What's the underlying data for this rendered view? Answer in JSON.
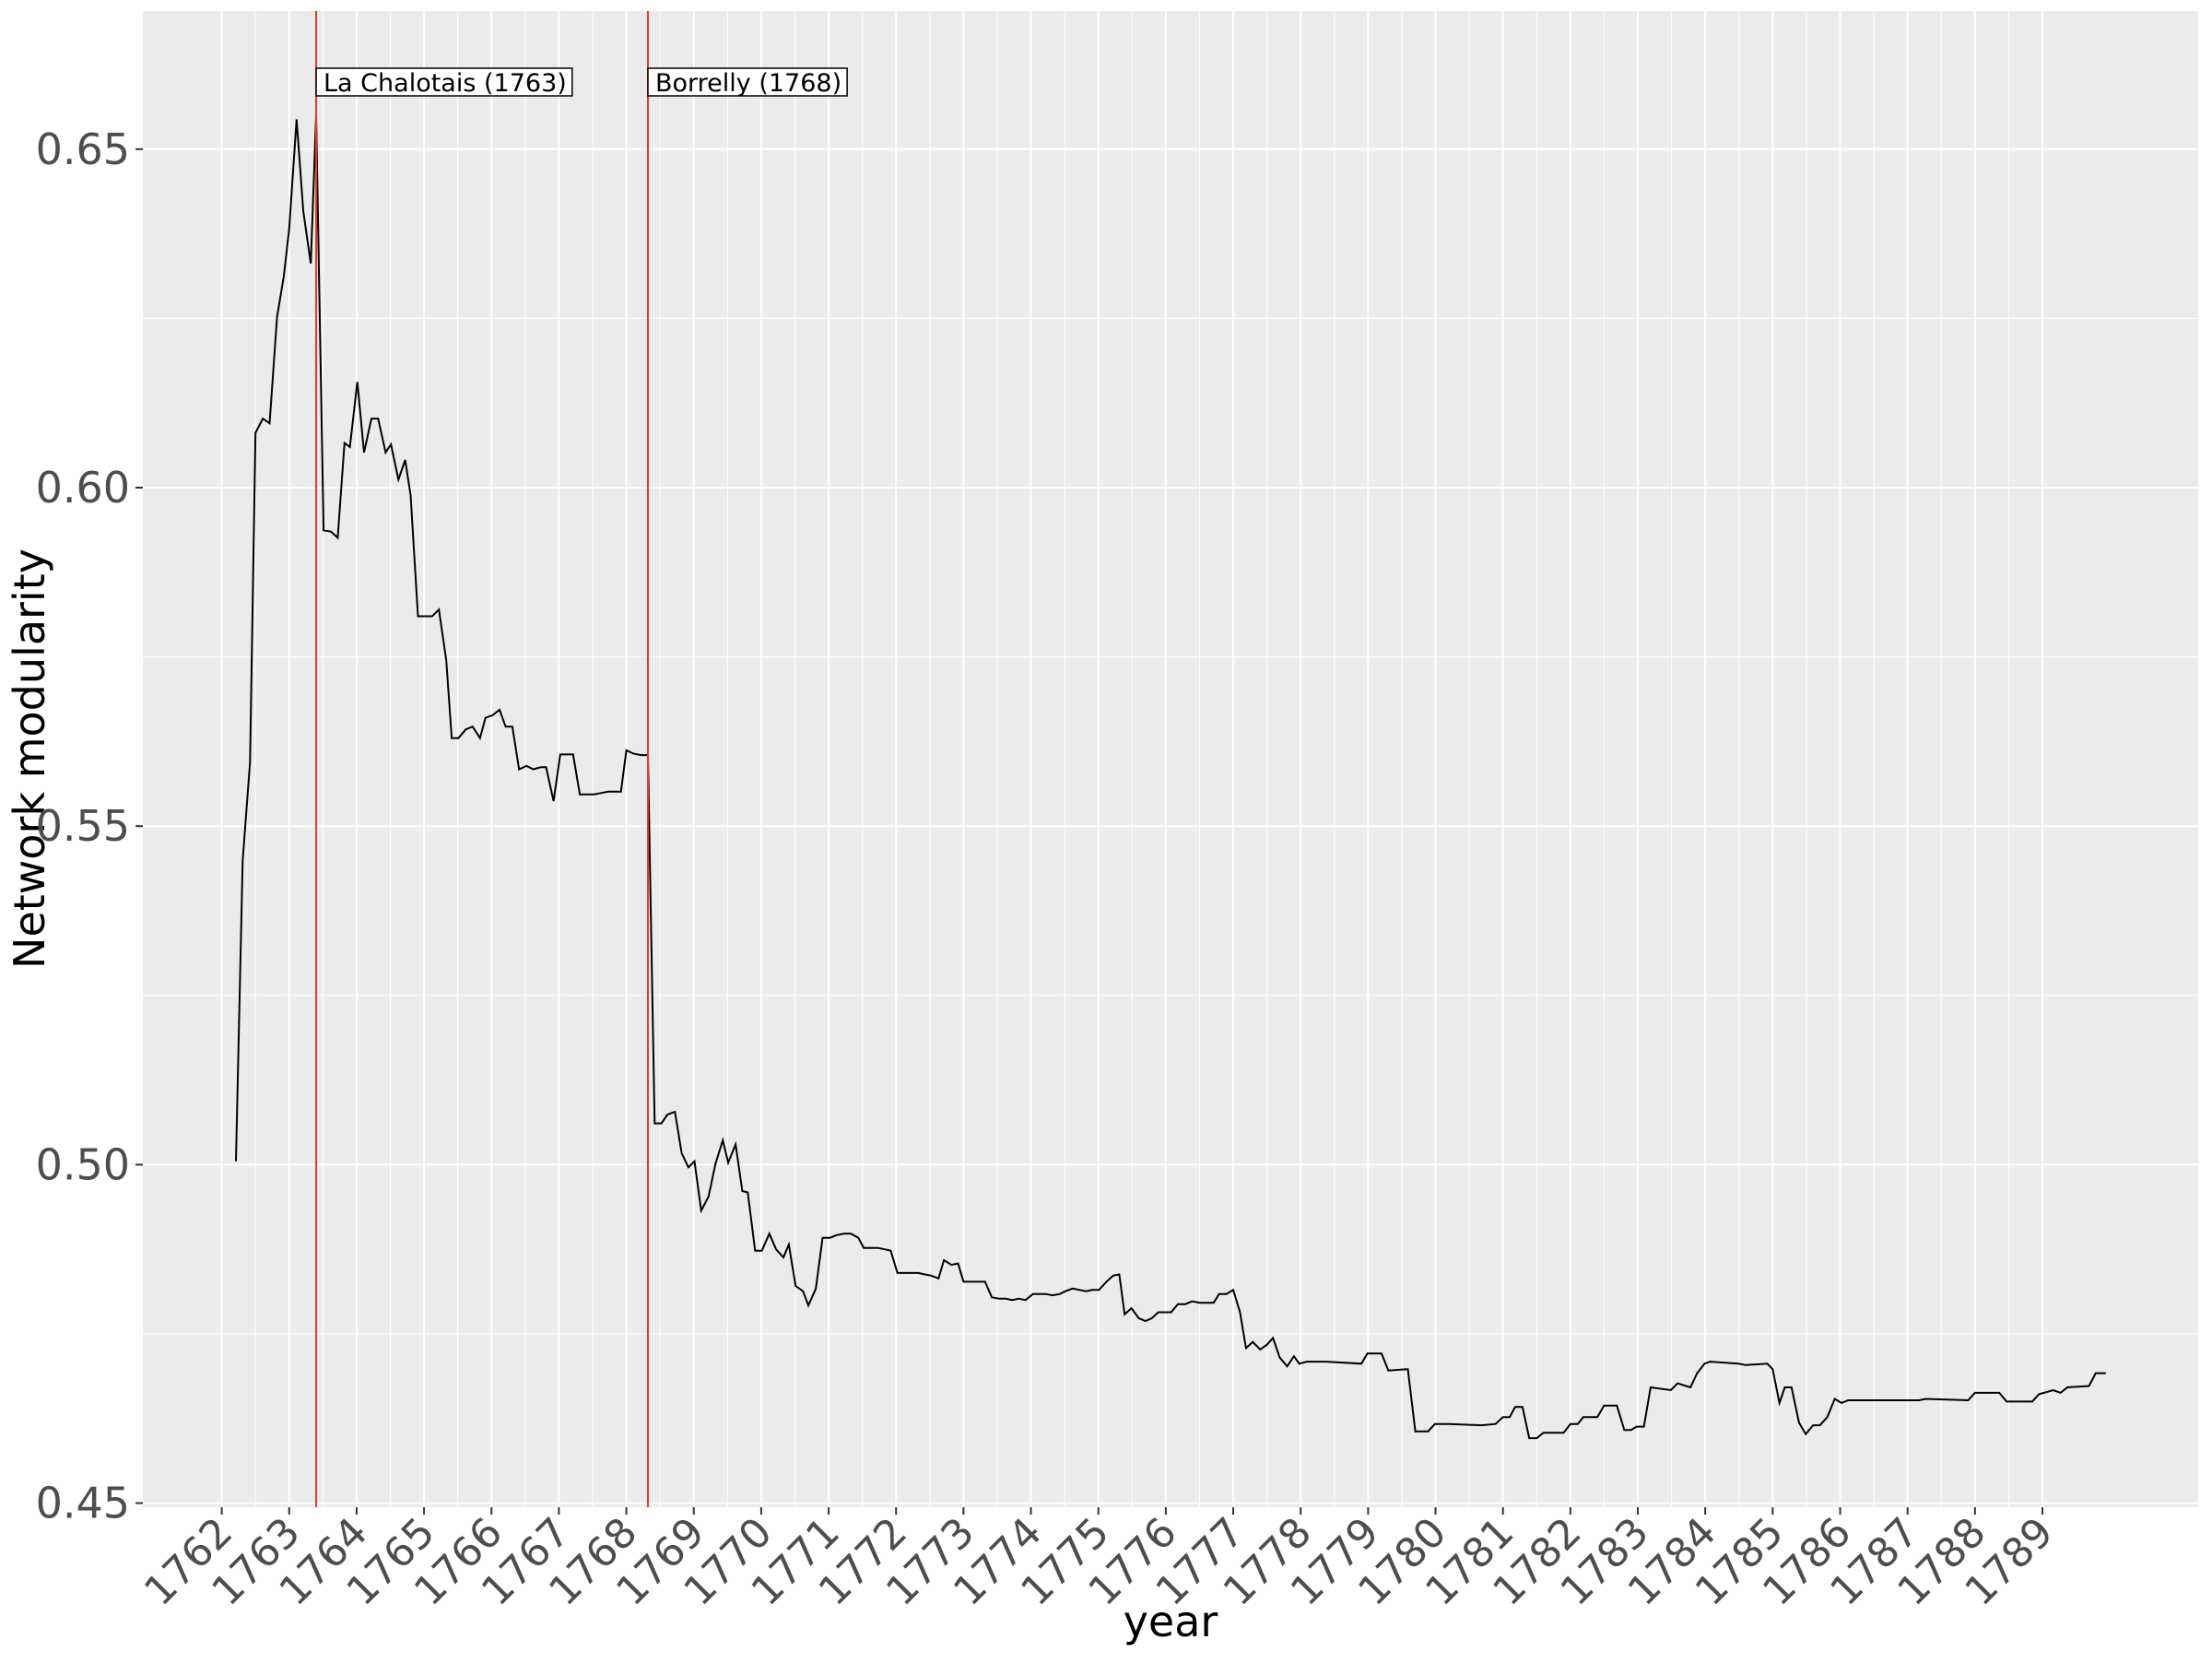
{
  "chart_data": {
    "type": "line",
    "xlabel": "year",
    "ylabel": "Network modularity",
    "x": [
      1762.21,
      1762.31,
      1762.42,
      1762.5,
      1762.61,
      1762.71,
      1762.82,
      1762.92,
      1763.0,
      1763.11,
      1763.21,
      1763.32,
      1763.4,
      1763.51,
      1763.62,
      1763.72,
      1763.82,
      1763.9,
      1764.01,
      1764.11,
      1764.22,
      1764.32,
      1764.43,
      1764.51,
      1764.62,
      1764.72,
      1764.8,
      1764.91,
      1765.01,
      1765.12,
      1765.22,
      1765.33,
      1765.41,
      1765.51,
      1765.62,
      1765.72,
      1765.83,
      1765.91,
      1766.02,
      1766.12,
      1766.21,
      1766.31,
      1766.41,
      1766.52,
      1766.62,
      1766.73,
      1766.81,
      1766.92,
      1767.02,
      1767.13,
      1767.21,
      1767.31,
      1767.42,
      1767.52,
      1767.63,
      1767.73,
      1767.82,
      1767.92,
      1768.0,
      1768.11,
      1768.22,
      1768.32,
      1768.42,
      1768.52,
      1768.61,
      1768.72,
      1768.82,
      1768.92,
      1769.01,
      1769.11,
      1769.22,
      1769.32,
      1769.43,
      1769.51,
      1769.62,
      1769.72,
      1769.8,
      1769.91,
      1770.01,
      1770.12,
      1770.22,
      1770.33,
      1770.41,
      1770.51,
      1770.62,
      1770.7,
      1770.81,
      1770.91,
      1771.02,
      1771.12,
      1771.23,
      1771.33,
      1771.44,
      1771.52,
      1771.62,
      1771.73,
      1771.83,
      1771.92,
      1772.02,
      1772.13,
      1772.23,
      1772.33,
      1772.42,
      1772.52,
      1772.63,
      1772.71,
      1772.82,
      1772.92,
      1773.0,
      1773.11,
      1773.21,
      1773.32,
      1773.42,
      1773.53,
      1773.63,
      1773.72,
      1773.82,
      1773.92,
      1774.03,
      1774.13,
      1774.22,
      1774.32,
      1774.43,
      1774.51,
      1774.62,
      1774.72,
      1774.82,
      1774.91,
      1775.01,
      1775.12,
      1775.22,
      1775.31,
      1775.39,
      1775.49,
      1775.6,
      1775.7,
      1775.79,
      1775.89,
      1776.0,
      1776.08,
      1776.18,
      1776.29,
      1776.39,
      1776.5,
      1776.6,
      1776.71,
      1776.79,
      1776.9,
      1777.0,
      1777.1,
      1777.19,
      1777.29,
      1777.4,
      1777.5,
      1777.59,
      1777.69,
      1777.8,
      1777.9,
      1777.98,
      1778.09,
      1778.38,
      1778.9,
      1778.99,
      1779.2,
      1779.3,
      1779.59,
      1779.7,
      1779.89,
      1779.99,
      1780.2,
      1780.68,
      1780.89,
      1781.0,
      1781.1,
      1781.18,
      1781.29,
      1781.39,
      1781.5,
      1781.6,
      1781.9,
      1782.0,
      1782.11,
      1782.19,
      1782.4,
      1782.5,
      1782.69,
      1782.8,
      1782.9,
      1782.98,
      1783.09,
      1783.19,
      1783.49,
      1783.59,
      1783.78,
      1783.88,
      1783.99,
      1784.07,
      1784.49,
      1784.6,
      1784.92,
      1785.0,
      1785.1,
      1785.18,
      1785.28,
      1785.39,
      1785.49,
      1785.6,
      1785.7,
      1785.81,
      1785.92,
      1786.02,
      1786.12,
      1786.54,
      1787.17,
      1787.27,
      1787.9,
      1788.0,
      1788.36,
      1788.47,
      1788.85,
      1788.95,
      1789.16,
      1789.27,
      1789.37,
      1789.69,
      1789.79,
      1789.94
    ],
    "values": [
      0.5005,
      0.5449,
      0.5595,
      0.6081,
      0.6102,
      0.6095,
      0.6252,
      0.6312,
      0.6383,
      0.6544,
      0.6408,
      0.6331,
      0.655,
      0.5937,
      0.5935,
      0.5926,
      0.6066,
      0.606,
      0.6156,
      0.6052,
      0.6102,
      0.6102,
      0.6052,
      0.6064,
      0.6012,
      0.6041,
      0.5989,
      0.581,
      0.581,
      0.581,
      0.582,
      0.5745,
      0.563,
      0.563,
      0.5643,
      0.5647,
      0.563,
      0.566,
      0.5664,
      0.5672,
      0.5647,
      0.5647,
      0.5584,
      0.5589,
      0.5584,
      0.5587,
      0.5587,
      0.5537,
      0.5606,
      0.5606,
      0.5606,
      0.5547,
      0.5547,
      0.5547,
      0.5549,
      0.5551,
      0.5551,
      0.5551,
      0.5612,
      0.5607,
      0.5605,
      0.5605,
      0.5061,
      0.5061,
      0.5074,
      0.5078,
      0.5017,
      0.4996,
      0.5005,
      0.4932,
      0.4953,
      0.5001,
      0.5036,
      0.5003,
      0.503,
      0.4961,
      0.4959,
      0.4873,
      0.4873,
      0.4898,
      0.4875,
      0.4863,
      0.4882,
      0.4821,
      0.4813,
      0.4792,
      0.4817,
      0.4892,
      0.4892,
      0.4896,
      0.4898,
      0.4898,
      0.4892,
      0.4877,
      0.4877,
      0.4877,
      0.4875,
      0.4873,
      0.484,
      0.484,
      0.484,
      0.484,
      0.4838,
      0.4836,
      0.4832,
      0.4859,
      0.4852,
      0.4854,
      0.4827,
      0.4827,
      0.4827,
      0.4827,
      0.4804,
      0.4802,
      0.4802,
      0.48,
      0.4802,
      0.48,
      0.4809,
      0.4809,
      0.4809,
      0.4807,
      0.4809,
      0.4813,
      0.4817,
      0.4815,
      0.4813,
      0.4815,
      0.4815,
      0.4827,
      0.4836,
      0.4838,
      0.4779,
      0.4788,
      0.4773,
      0.4769,
      0.4773,
      0.4782,
      0.4782,
      0.4782,
      0.4794,
      0.4794,
      0.4798,
      0.4796,
      0.4796,
      0.4796,
      0.4809,
      0.4809,
      0.4815,
      0.4782,
      0.4729,
      0.4738,
      0.4727,
      0.4734,
      0.4744,
      0.4715,
      0.4702,
      0.4717,
      0.4706,
      0.4709,
      0.4709,
      0.4706,
      0.4721,
      0.4721,
      0.4696,
      0.4698,
      0.4606,
      0.4606,
      0.4617,
      0.4617,
      0.4615,
      0.4617,
      0.4627,
      0.4627,
      0.4642,
      0.4642,
      0.4596,
      0.4596,
      0.4604,
      0.4604,
      0.4617,
      0.4617,
      0.4627,
      0.4627,
      0.4644,
      0.4644,
      0.4608,
      0.4608,
      0.4613,
      0.4613,
      0.4671,
      0.4667,
      0.4677,
      0.4671,
      0.4692,
      0.4706,
      0.4709,
      0.4706,
      0.4704,
      0.4706,
      0.4698,
      0.4648,
      0.4671,
      0.4671,
      0.4619,
      0.4602,
      0.4615,
      0.4615,
      0.4627,
      0.4654,
      0.4648,
      0.4652,
      0.4652,
      0.4652,
      0.4654,
      0.4652,
      0.4663,
      0.4663,
      0.465,
      0.465,
      0.4661,
      0.4667,
      0.4663,
      0.4671,
      0.4673,
      0.4692,
      0.4692
    ],
    "color": "#000000",
    "xlim": [
      1760.83,
      1791.31
    ],
    "ylim": [
      0.4494,
      0.6704
    ],
    "xticks": [
      1762,
      1763,
      1764,
      1765,
      1766,
      1767,
      1768,
      1769,
      1770,
      1771,
      1772,
      1773,
      1774,
      1775,
      1776,
      1777,
      1778,
      1779,
      1780,
      1781,
      1782,
      1783,
      1784,
      1785,
      1786,
      1787,
      1788,
      1789
    ],
    "yticks": [
      0.45,
      {
        "value": 0.5,
        "label": "0.50"
      },
      0.55,
      {
        "value": 0.6,
        "label": "0.60"
      },
      0.65
    ],
    "grid": true,
    "annotations": [
      {
        "x": 1763.4,
        "label": "La Chalotais (1763)"
      },
      {
        "x": 1768.32,
        "label": "Borrelly (1768)"
      }
    ],
    "annotation_color": "#e8382b"
  }
}
